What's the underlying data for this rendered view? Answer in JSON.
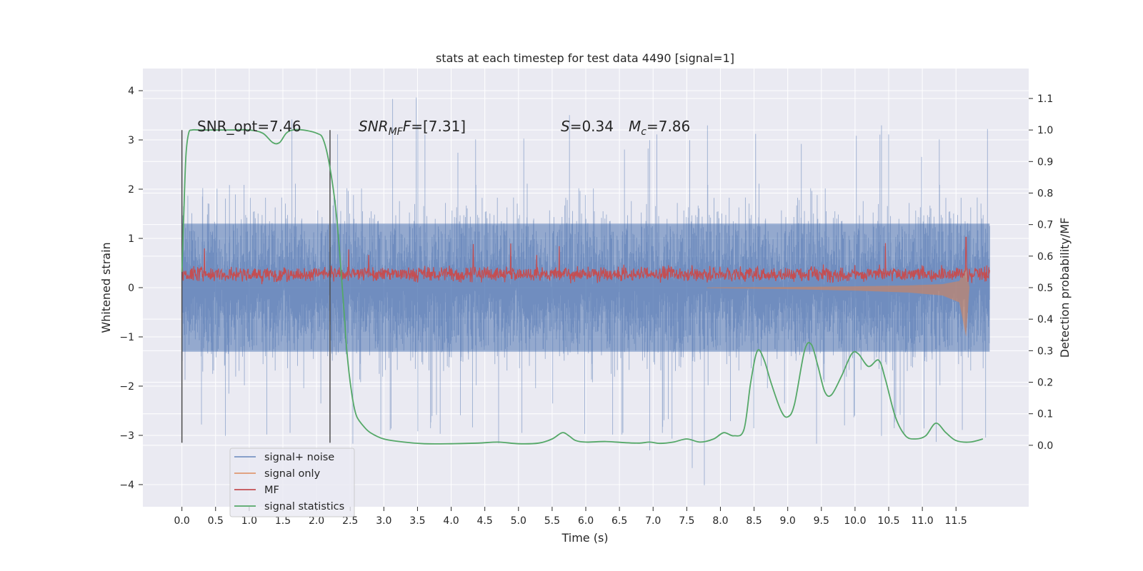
{
  "chart_data": {
    "type": "line",
    "title": "stats at each timestep for test data 4490 [signal=1]",
    "xlabel": "Time (s)",
    "ylabel": "Whitened strain",
    "y2label": "Detection probability/MF",
    "xlim": [
      -0.58,
      12.58
    ],
    "ylim": [
      -4.45,
      4.45
    ],
    "y2lim": [
      -0.195,
      1.195
    ],
    "xticks": [
      "0.0",
      "0.5",
      "1.0",
      "1.5",
      "2.0",
      "2.5",
      "3.0",
      "3.5",
      "4.0",
      "4.5",
      "5.0",
      "5.5",
      "6.0",
      "6.5",
      "7.0",
      "7.5",
      "8.0",
      "8.5",
      "9.0",
      "9.5",
      "10.0",
      "10.5",
      "11.0",
      "11.5"
    ],
    "yticks": [
      "4",
      "3",
      "2",
      "1",
      "0",
      "−1",
      "−2",
      "−3",
      "−4"
    ],
    "y2ticks": [
      "1.1",
      "1.0",
      "0.9",
      "0.8",
      "0.7",
      "0.6",
      "0.5",
      "0.4",
      "0.3",
      "0.2",
      "0.1",
      "0.0"
    ],
    "grid": true,
    "legend_position": "lower-left",
    "annotations": {
      "snr_opt": "SNR_opt=7.46",
      "snr_mf": "SNR",
      "snr_mf_sub": "MF",
      "snr_mf_val": "=[7.31]",
      "s_label": "S",
      "s_val": "=0.34",
      "mc_label": "M",
      "mc_sub": "c",
      "mc_val": "=7.86"
    },
    "vlines": [
      0.0,
      2.2
    ],
    "series": [
      {
        "name": "signal+ noise",
        "color": "#4c72b0",
        "alpha": 0.5,
        "axis": "left",
        "x_range": [
          0.0,
          12.0
        ],
        "core_band": [
          -1.3,
          1.3
        ],
        "spike_max": [
          3.2,
          3.3,
          2.9,
          3.5,
          3.2,
          3.1,
          4.1,
          3.3,
          3.2,
          3.0,
          3.1,
          3.6,
          3.4,
          3.0,
          3.3,
          3.5,
          3.6,
          3.2,
          3.0,
          3.4,
          3.3,
          3.1,
          3.2,
          3.3
        ],
        "spike_min": [
          -3.0,
          -3.2,
          -3.3,
          -3.1,
          -3.0,
          -3.2,
          -3.3,
          -3.0,
          -2.9,
          -3.5,
          -3.1,
          -3.0,
          -3.2,
          -3.4,
          -3.1,
          -4.1,
          -3.0,
          -3.1,
          -3.2,
          -3.0,
          -3.1,
          -3.0,
          -3.2,
          -3.2
        ]
      },
      {
        "name": "signal only",
        "color": "#dd8452",
        "alpha": 0.6,
        "axis": "left",
        "envelope": [
          [
            7.8,
            0.01
          ],
          [
            9.0,
            0.03
          ],
          [
            10.0,
            0.06
          ],
          [
            10.8,
            0.1
          ],
          [
            11.3,
            0.16
          ],
          [
            11.55,
            0.3
          ],
          [
            11.65,
            1.0
          ],
          [
            11.7,
            0.0
          ]
        ]
      },
      {
        "name": "MF",
        "color": "#c44e52",
        "axis": "right",
        "base_range": [
          0.5,
          0.56
        ],
        "peak_max": 0.65,
        "end_spike": {
          "x": 11.65,
          "y": 0.66
        }
      },
      {
        "name": "signal statistics",
        "color": "#55a868",
        "axis": "right",
        "x": [
          0.0,
          0.03,
          0.06,
          0.1,
          0.15,
          0.25,
          0.4,
          0.7,
          1.0,
          1.2,
          1.35,
          1.45,
          1.55,
          1.65,
          1.8,
          2.0,
          2.1,
          2.2,
          2.3,
          2.4,
          2.45,
          2.5,
          2.55,
          2.6,
          2.7,
          2.8,
          3.0,
          3.3,
          3.6,
          4.0,
          4.4,
          4.7,
          5.0,
          5.3,
          5.5,
          5.65,
          5.75,
          5.85,
          6.0,
          6.3,
          6.6,
          6.8,
          6.95,
          7.1,
          7.3,
          7.5,
          7.7,
          7.9,
          8.05,
          8.2,
          8.35,
          8.45,
          8.55,
          8.65,
          8.75,
          8.9,
          9.0,
          9.1,
          9.25,
          9.35,
          9.45,
          9.55,
          9.65,
          9.8,
          9.95,
          10.05,
          10.2,
          10.35,
          10.45,
          10.6,
          10.75,
          10.9,
          11.05,
          11.2,
          11.35,
          11.5,
          11.7,
          11.9
        ],
        "y": [
          0.55,
          0.75,
          0.92,
          0.99,
          1.0,
          1.0,
          1.0,
          1.0,
          1.0,
          0.99,
          0.96,
          0.96,
          0.99,
          1.0,
          1.0,
          0.99,
          0.97,
          0.88,
          0.72,
          0.45,
          0.3,
          0.2,
          0.13,
          0.09,
          0.06,
          0.04,
          0.02,
          0.01,
          0.005,
          0.005,
          0.007,
          0.01,
          0.005,
          0.007,
          0.02,
          0.04,
          0.03,
          0.015,
          0.01,
          0.012,
          0.008,
          0.007,
          0.01,
          0.006,
          0.01,
          0.02,
          0.01,
          0.02,
          0.04,
          0.03,
          0.05,
          0.2,
          0.3,
          0.27,
          0.2,
          0.11,
          0.09,
          0.13,
          0.3,
          0.32,
          0.25,
          0.17,
          0.16,
          0.22,
          0.29,
          0.29,
          0.25,
          0.27,
          0.21,
          0.09,
          0.03,
          0.02,
          0.03,
          0.07,
          0.04,
          0.015,
          0.01,
          0.02
        ]
      }
    ]
  }
}
